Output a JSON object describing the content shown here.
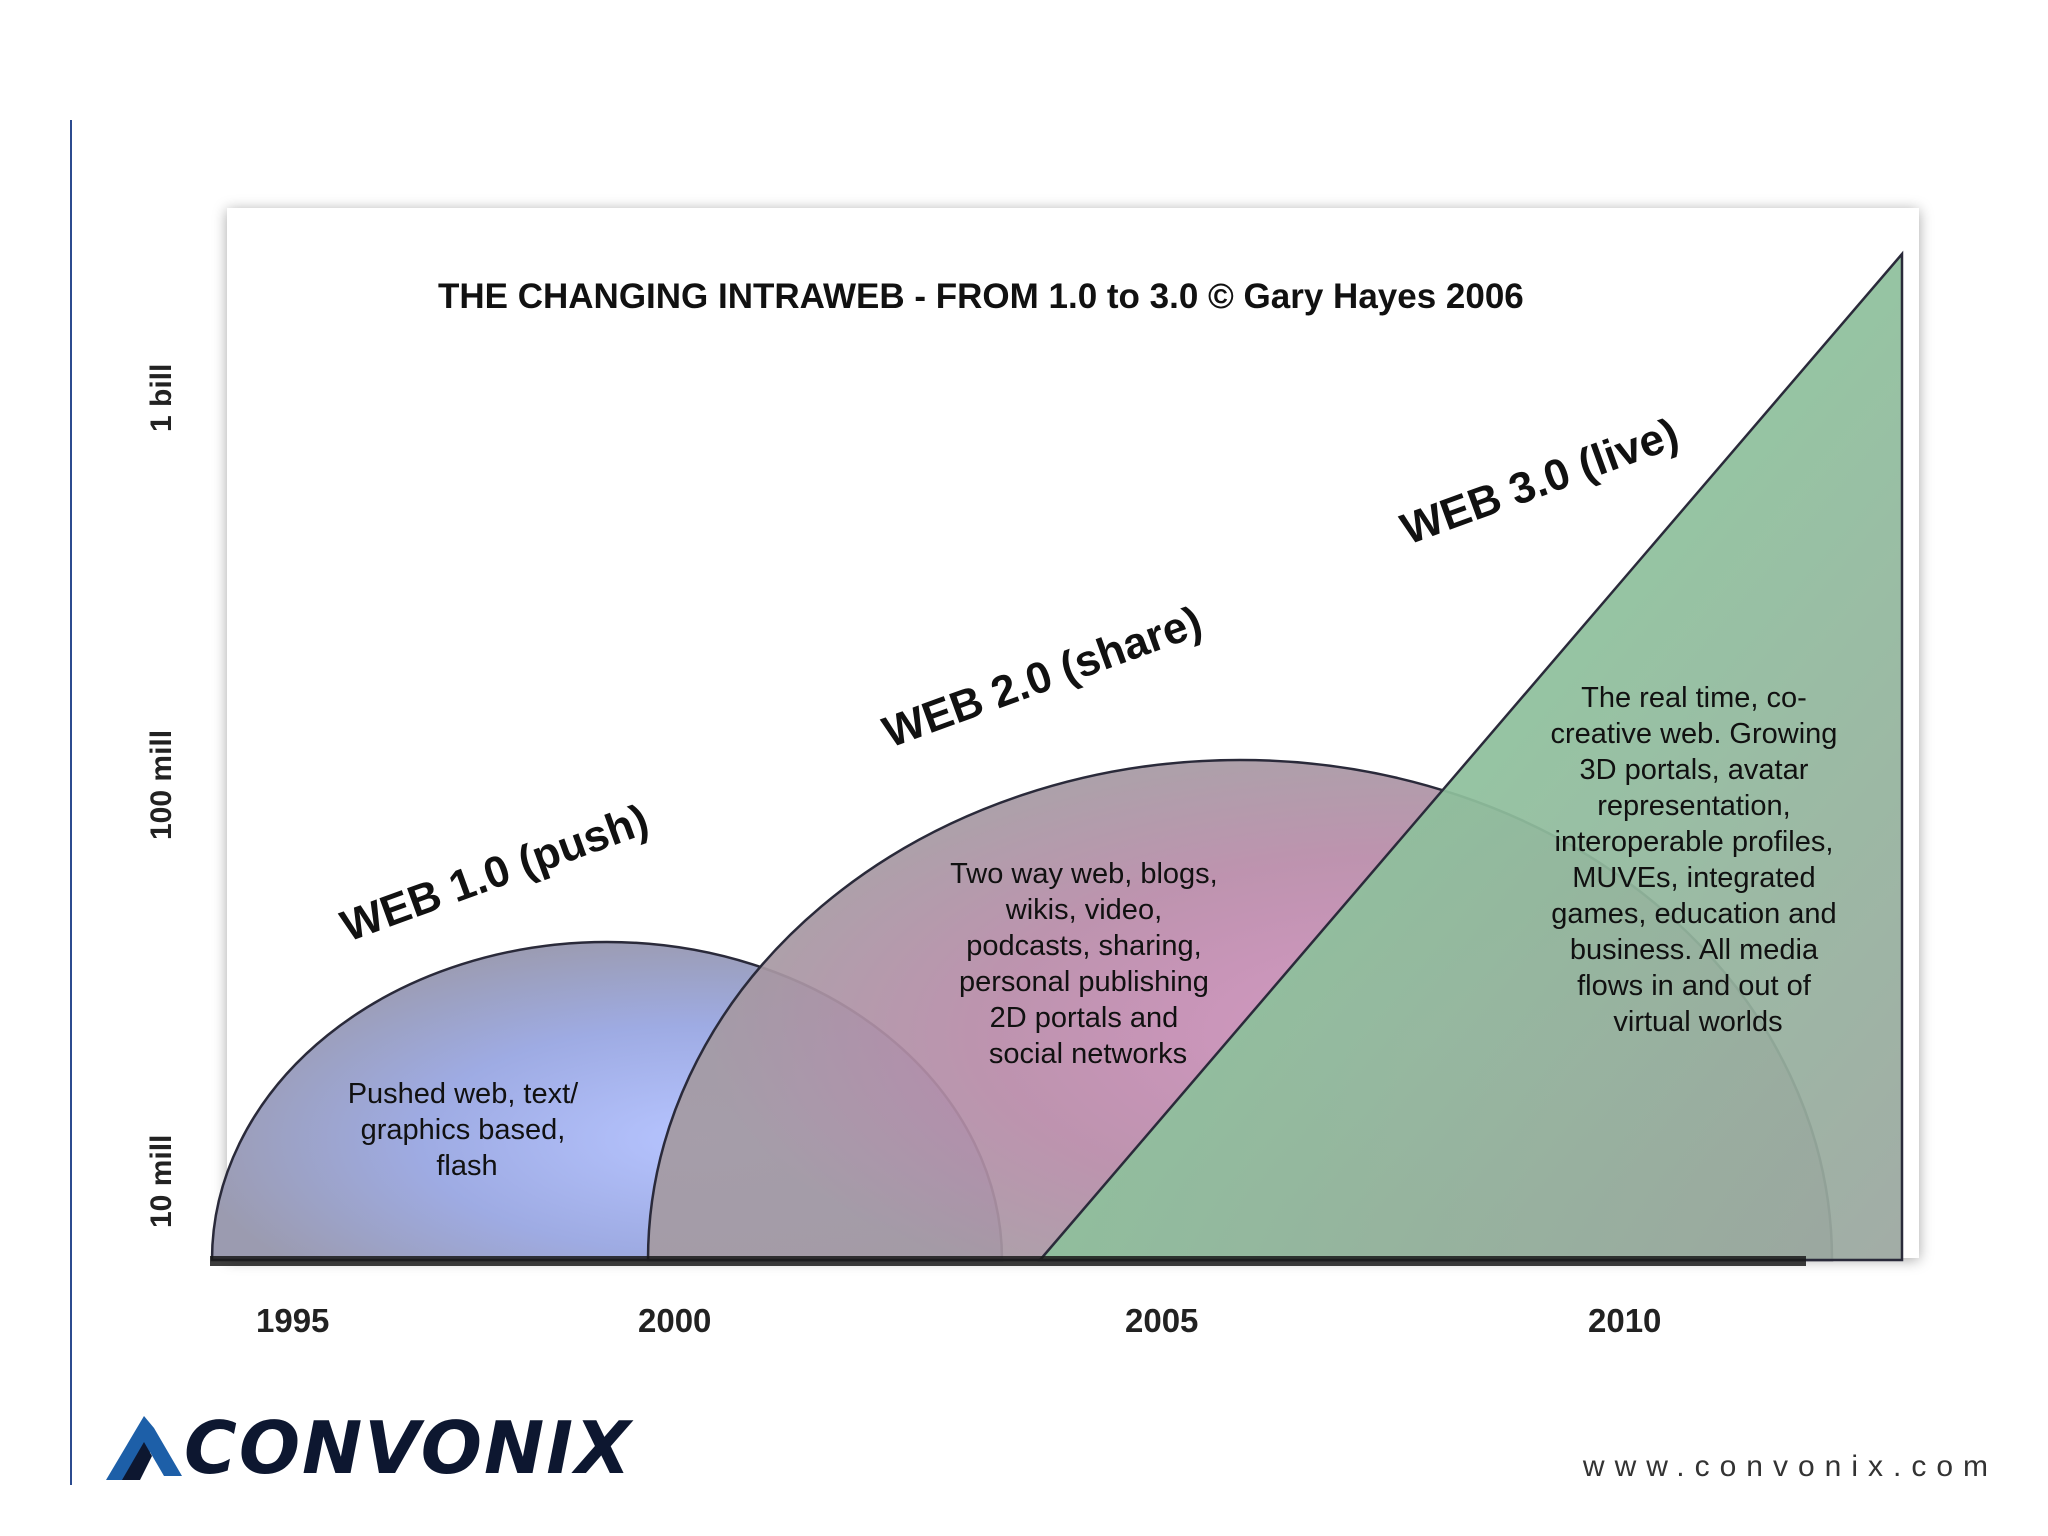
{
  "diagram": {
    "title": "THE CHANGING INTRAWEB - FROM 1.0 to 3.0 © Gary Hayes 2006",
    "y_axis": {
      "ticks": [
        "1 bill",
        "100 mill",
        "10 mill"
      ]
    },
    "x_axis": {
      "ticks": [
        "1995",
        "2000",
        "2005",
        "2010"
      ]
    },
    "eras": [
      {
        "label": "WEB 1.0 (push)",
        "description": [
          "Pushed web, text/",
          "graphics based,",
          "flash"
        ],
        "color": "#a9b6ee"
      },
      {
        "label": "WEB 2.0 (share)",
        "description": [
          "Two way web, blogs,",
          "wikis, video,",
          "podcasts, sharing,",
          "personal publishing",
          "2D portals and",
          "social networks"
        ],
        "color": "#c98fb8"
      },
      {
        "label": "WEB 3.0 (live)",
        "description": [
          "The real time, co-",
          "creative web. Growing",
          "3D portals, avatar",
          "representation,",
          "interoperable profiles,",
          "MUVEs, integrated",
          "games, education and",
          "business. All media",
          "flows in and out of",
          "virtual worlds"
        ],
        "color": "#8fc79e"
      }
    ]
  },
  "branding": {
    "logo_text": "CONVONIX",
    "website": "www.convonix.com",
    "logo_color": "#1d5fa8"
  }
}
